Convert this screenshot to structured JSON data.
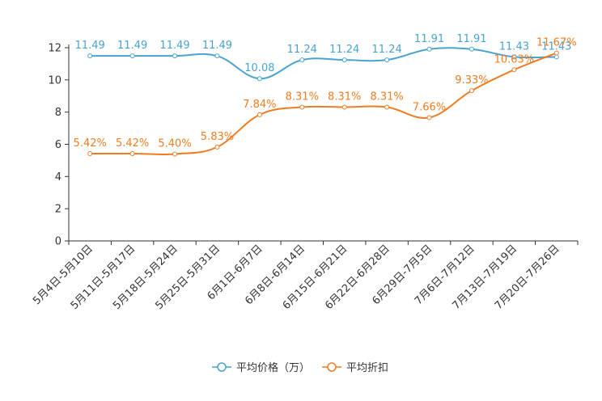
{
  "chart_data": {
    "type": "line",
    "title": "",
    "xlabel": "",
    "ylabel": "",
    "ylim": [
      0,
      12
    ],
    "yticks": [
      0,
      2,
      4,
      6,
      8,
      10,
      12
    ],
    "grid": false,
    "legend_position": "bottom",
    "categories": [
      "5月4日-5月10日",
      "5月11日-5月17日",
      "5月18日-5月24日",
      "5月25日-5月31日",
      "6月1日-6月7日",
      "6月8日-6月14日",
      "6月15日-6月21日",
      "6月22日-6月28日",
      "6月29日-7月5日",
      "7月6日-7月12日",
      "7月13日-7月19日",
      "7月20日-7月26日"
    ],
    "series": [
      {
        "name": "平均价格（万）",
        "color": "#4aa3cf",
        "values": [
          11.49,
          11.49,
          11.49,
          11.49,
          10.08,
          11.24,
          11.24,
          11.24,
          11.91,
          11.91,
          11.43,
          11.43
        ],
        "labels": [
          "11.49",
          "11.49",
          "11.49",
          "11.49",
          "10.08",
          "11.24",
          "11.24",
          "11.24",
          "11.91",
          "11.91",
          "11.43",
          "11.43"
        ]
      },
      {
        "name": "平均折扣",
        "color": "#f07c21",
        "values": [
          5.42,
          5.42,
          5.4,
          5.83,
          7.84,
          8.31,
          8.31,
          8.31,
          7.66,
          9.33,
          10.63,
          11.67
        ],
        "labels": [
          "5.42%",
          "5.42%",
          "5.40%",
          "5.83%",
          "7.84%",
          "8.31%",
          "8.31%",
          "8.31%",
          "7.66%",
          "9.33%",
          "10.63%",
          "11.67%"
        ]
      }
    ]
  }
}
